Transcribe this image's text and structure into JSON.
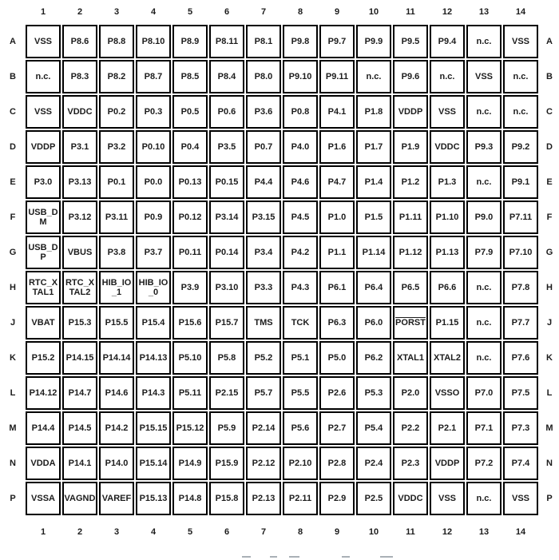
{
  "page": {
    "background": "#ffffff",
    "text_color": "#1c1c1c",
    "border_color": "#000000"
  },
  "grid": {
    "column_headers": [
      "1",
      "2",
      "3",
      "4",
      "5",
      "6",
      "7",
      "8",
      "9",
      "10",
      "11",
      "12",
      "13",
      "14"
    ],
    "row_headers": [
      "A",
      "B",
      "C",
      "D",
      "E",
      "F",
      "G",
      "H",
      "J",
      "K",
      "L",
      "M",
      "N",
      "P"
    ],
    "overline_pins": [
      "PORST"
    ],
    "rows": [
      [
        "VSS",
        "P8.6",
        "P8.8",
        "P8.10",
        "P8.9",
        "P8.11",
        "P8.1",
        "P9.8",
        "P9.7",
        "P9.9",
        "P9.5",
        "P9.4",
        "n.c.",
        "VSS"
      ],
      [
        "n.c.",
        "P8.3",
        "P8.2",
        "P8.7",
        "P8.5",
        "P8.4",
        "P8.0",
        "P9.10",
        "P9.11",
        "n.c.",
        "P9.6",
        "n.c.",
        "VSS",
        "n.c."
      ],
      [
        "VSS",
        "VDDC",
        "P0.2",
        "P0.3",
        "P0.5",
        "P0.6",
        "P3.6",
        "P0.8",
        "P4.1",
        "P1.8",
        "VDDP",
        "VSS",
        "n.c.",
        "n.c."
      ],
      [
        "VDDP",
        "P3.1",
        "P3.2",
        "P0.10",
        "P0.4",
        "P3.5",
        "P0.7",
        "P4.0",
        "P1.6",
        "P1.7",
        "P1.9",
        "VDDC",
        "P9.3",
        "P9.2"
      ],
      [
        "P3.0",
        "P3.13",
        "P0.1",
        "P0.0",
        "P0.13",
        "P0.15",
        "P4.4",
        "P4.6",
        "P4.7",
        "P1.4",
        "P1.2",
        "P1.3",
        "n.c.",
        "P9.1"
      ],
      [
        "USB_DM",
        "P3.12",
        "P3.11",
        "P0.9",
        "P0.12",
        "P3.14",
        "P3.15",
        "P4.5",
        "P1.0",
        "P1.5",
        "P1.11",
        "P1.10",
        "P9.0",
        "P7.11"
      ],
      [
        "USB_DP",
        "VBUS",
        "P3.8",
        "P3.7",
        "P0.11",
        "P0.14",
        "P3.4",
        "P4.2",
        "P1.1",
        "P1.14",
        "P1.12",
        "P1.13",
        "P7.9",
        "P7.10"
      ],
      [
        "RTC_XTAL1",
        "RTC_XTAL2",
        "HIB_IO_1",
        "HIB_IO_0",
        "P3.9",
        "P3.10",
        "P3.3",
        "P4.3",
        "P6.1",
        "P6.4",
        "P6.5",
        "P6.6",
        "n.c.",
        "P7.8"
      ],
      [
        "VBAT",
        "P15.3",
        "P15.5",
        "P15.4",
        "P15.6",
        "P15.7",
        "TMS",
        "TCK",
        "P6.3",
        "P6.0",
        "PORST",
        "P1.15",
        "n.c.",
        "P7.7"
      ],
      [
        "P15.2",
        "P14.15",
        "P14.14",
        "P14.13",
        "P5.10",
        "P5.8",
        "P5.2",
        "P5.1",
        "P5.0",
        "P6.2",
        "XTAL1",
        "XTAL2",
        "n.c.",
        "P7.6"
      ],
      [
        "P14.12",
        "P14.7",
        "P14.6",
        "P14.3",
        "P5.11",
        "P2.15",
        "P5.7",
        "P5.5",
        "P2.6",
        "P5.3",
        "P2.0",
        "VSSO",
        "P7.0",
        "P7.5"
      ],
      [
        "P14.4",
        "P14.5",
        "P14.2",
        "P15.15",
        "P15.12",
        "P5.9",
        "P2.14",
        "P5.6",
        "P2.7",
        "P5.4",
        "P2.2",
        "P2.1",
        "P7.1",
        "P7.3"
      ],
      [
        "VDDA",
        "P14.1",
        "P14.0",
        "P15.14",
        "P14.9",
        "P15.9",
        "P2.12",
        "P2.10",
        "P2.8",
        "P2.4",
        "P2.3",
        "VDDP",
        "P7.2",
        "P7.4"
      ],
      [
        "VSSA",
        "VAGND",
        "VAREF",
        "P15.13",
        "P14.8",
        "P15.8",
        "P2.13",
        "P2.11",
        "P2.9",
        "P2.5",
        "VDDC",
        "VSS",
        "n.c.",
        "VSS"
      ]
    ]
  }
}
